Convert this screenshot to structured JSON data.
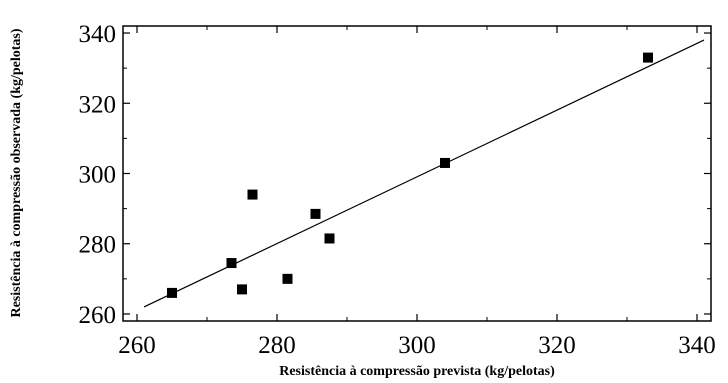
{
  "chart_data": {
    "type": "scatter",
    "xlabel": "Resistência à compressão prevista (kg/pelotas)",
    "ylabel": "Resistência à compressão observada (kg/pelotas)",
    "xlim": [
      258,
      342
    ],
    "ylim": [
      258,
      342
    ],
    "xticks": [
      260,
      280,
      300,
      320,
      340
    ],
    "yticks": [
      260,
      280,
      300,
      320,
      340
    ],
    "grid": false,
    "points": [
      {
        "x": 265,
        "y": 266
      },
      {
        "x": 273.5,
        "y": 274.5
      },
      {
        "x": 275,
        "y": 267
      },
      {
        "x": 276.5,
        "y": 294
      },
      {
        "x": 281.5,
        "y": 270
      },
      {
        "x": 285.5,
        "y": 288.5
      },
      {
        "x": 287.5,
        "y": 281.5
      },
      {
        "x": 304,
        "y": 303
      },
      {
        "x": 333,
        "y": 333
      }
    ],
    "fit_line": {
      "x": [
        261,
        341
      ],
      "y": [
        262,
        338
      ]
    }
  }
}
